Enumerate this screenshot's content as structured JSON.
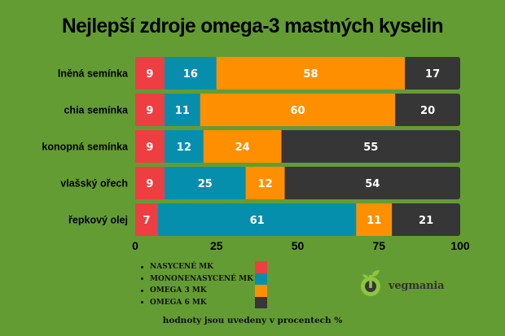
{
  "chart_data": {
    "type": "bar",
    "orientation": "horizontal",
    "stacked": true,
    "title": "Nejlepší zdroje omega-3 mastných kyselin",
    "xlabel": "",
    "ylabel": "",
    "xlim": [
      0,
      100
    ],
    "x_ticks": [
      0,
      25,
      50,
      75,
      100
    ],
    "grid": false,
    "categories": [
      "lněná semínka",
      "chia semínka",
      "konopná semínka",
      "vlašský ořech",
      "řepkový olej"
    ],
    "series": [
      {
        "name": "NASYCENÉ MK",
        "color": "#ee3e42",
        "values": [
          9,
          9,
          9,
          9,
          7
        ]
      },
      {
        "name": "MONONENASYCENÉ MK",
        "color": "#068fad",
        "values": [
          16,
          11,
          12,
          25,
          61
        ]
      },
      {
        "name": "OMEGA 3 MK",
        "color": "#fe9000",
        "values": [
          58,
          60,
          24,
          12,
          11
        ]
      },
      {
        "name": "OMEGA 6 MK",
        "color": "#363636",
        "values": [
          17,
          20,
          55,
          54,
          21
        ]
      }
    ],
    "legend_position": "bottom-center",
    "note": "hodnoty jsou uvedeny v procentech %"
  },
  "brand": {
    "name": "vegmania",
    "icon": "sprout-logo-icon"
  },
  "colors": {
    "background": "#649c34"
  }
}
